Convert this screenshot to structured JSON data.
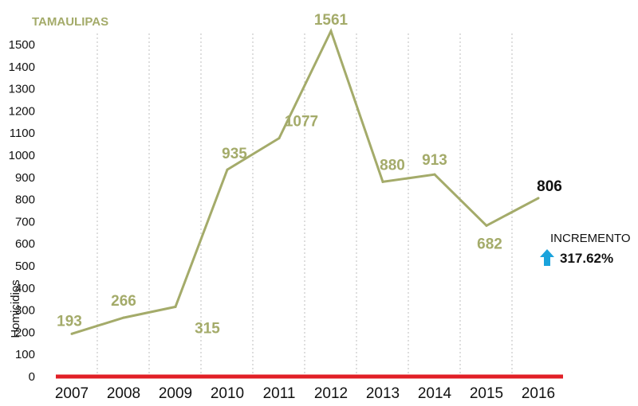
{
  "chart_data": {
    "type": "line",
    "title": "TAMAULIPAS",
    "ylabel": "Homicidios",
    "xlabel": "",
    "categories": [
      "2007",
      "2008",
      "2009",
      "2010",
      "2011",
      "2012",
      "2013",
      "2014",
      "2015",
      "2016"
    ],
    "series": [
      {
        "values": [
          193,
          266,
          315,
          935,
          1077,
          1561,
          880,
          913,
          682,
          806
        ],
        "color": "#a4ab6a"
      }
    ],
    "ylim": [
      0,
      1550
    ],
    "yticks": [
      0,
      100,
      200,
      300,
      400,
      500,
      600,
      700,
      800,
      900,
      1000,
      1100,
      1200,
      1300,
      1400,
      1500
    ],
    "grid": "vertical dotted",
    "baseline_color": "#e11f26",
    "highlight_last_label_color": "#111111"
  },
  "annotation": {
    "label": "INCREMENTO",
    "value": "317.62%",
    "icon": "arrow-up-icon",
    "icon_color": "#1aa3dc"
  }
}
